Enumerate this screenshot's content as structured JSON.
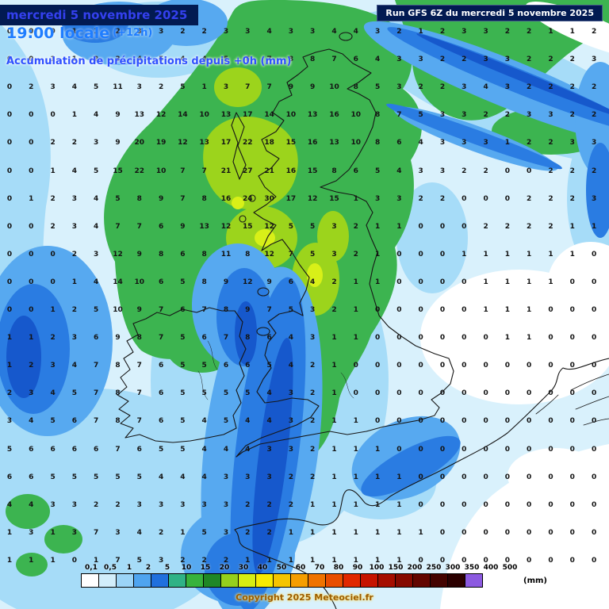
{
  "header": {
    "date_line": "mercredi 5 novembre 2025",
    "time_line": "19:00 locale",
    "time_offset": "(+12h)",
    "subtitle": "Accumulation de précipitations depuis +0h (mm)"
  },
  "run_info": "Run GFS 6Z du mercredi 5 novembre 2025",
  "copyright": "Copyright 2025 Meteociel.fr",
  "legend": {
    "unit": "(mm)",
    "labels": [
      "0,1",
      "0,5",
      "1",
      "2",
      "5",
      "10",
      "15",
      "20",
      "30",
      "40",
      "50",
      "60",
      "70",
      "80",
      "90",
      "100",
      "150",
      "200",
      "250",
      "300",
      "350",
      "400",
      "500"
    ],
    "colors": [
      "#ffffff",
      "#d2eefb",
      "#9bd4f7",
      "#4fa4ef",
      "#2070dd",
      "#2fb286",
      "#37b23c",
      "#1f8726",
      "#95cf1d",
      "#d7ed12",
      "#f7ea00",
      "#f5c400",
      "#f59e00",
      "#ef7300",
      "#e84e00",
      "#e02800",
      "#c61400",
      "#a50e00",
      "#850a00",
      "#630600",
      "#430300",
      "#2b0000",
      "#8c5ae0"
    ]
  },
  "map": {
    "palette": {
      "base": "#d9f1fc",
      "light": "#a6dcf8",
      "medium": "#57a9f0",
      "strong": "#2a7ce2",
      "deep": "#1658cc",
      "green": "#3cb450",
      "ygreen": "#9cd41c",
      "bright": "#d8f018",
      "dry": "#ffffff"
    }
  },
  "grid": {
    "rows": [
      "0 0 0 1 1 2 3 3 2 2 3 3 4 3 3 4 4 3 2 1 2 3 3 2 2 1 1 2",
      "0 0 1 1 2 3 4 5 4 4 5 6 7 8 8 7 6 4 3 3 2 2 3 3 2 2 2 3",
      "0 2 3 4 5 11 3 2 5 1 3 7 7 9 9 10 8 5 3 2 2 3 4 3 2 2 2 2",
      "0 0 0 1 4 9 13 12 14 10 13 17 14 10 13 16 10 8 7 5 3 3 2 2 3 3 2 2",
      "0 0 2 2 3 9 20 19 12 13 17 22 18 15 16 13 10 8 6 4 3 3 3 1 2 2 3 3",
      "0 0 1 4 5 15 22 10 7 7 21 27 21 16 15 8 6 5 4 3 3 2 2 0 0 2 2 2",
      "0 1 2 3 4 5 8 9 7 8 16 24 30 17 12 15 1 3 3 2 2 0 0 0 2 2 2 3",
      "0 0 2 3 4 7 7 6 9 13 12 15 12 5 5 3 2 1 1 0 0 0 2 2 2 2 1 1",
      "0 0 0 2 3 12 9 8 6 8 11 8 12 7 5 3 2 1 0 0 0 1 1 1 1 1 1 0",
      "0 0 0 1 4 14 10 6 5 8 9 12 9 6 4 2 1 1 0 0 0 0 1 1 1 1 0 0",
      "0 0 1 2 5 10 9 7 6 7 8 9 7 5 3 2 1 0 0 0 0 0 1 1 1 0 0 0",
      "1 1 2 3 6 9 8 7 5 6 7 8 6 4 3 1 1 0 0 0 0 0 0 1 1 0 0 0",
      "1 2 3 4 7 8 7 6 5 5 6 6 5 4 2 1 0 0 0 0 0 0 0 0 0 0 0 0",
      "2 3 4 5 7 8 7 6 5 5 5 5 4 3 2 1 0 0 0 0 0 0 0 0 0 0 0 0",
      "3 4 5 6 7 8 7 6 5 4 5 4 4 3 2 1 1 0 0 0 0 0 0 0 0 0 0 0",
      "5 6 6 6 6 7 6 5 5 4 4 4 3 3 2 1 1 1 0 0 0 0 0 0 0 0 0 0",
      "6 6 5 5 5 5 5 4 4 4 3 3 3 2 2 1 1 1 1 0 0 0 0 0 0 0 0 0",
      "4 4 3 3 2 2 3 3 3 3 3 2 2 2 1 1 1 1 1 0 0 0 0 0 0 0 0 0",
      "1 3 1 3 7 3 4 2 1 5 3 2 2 1 1 1 1 1 1 1 0 0 0 0 0 0 0 0",
      "1 1 1 0 1 7 5 3 2 2 2 1 1 1 1 1 1 1 1 0 0 0 0 0 0 0 0 0"
    ]
  }
}
